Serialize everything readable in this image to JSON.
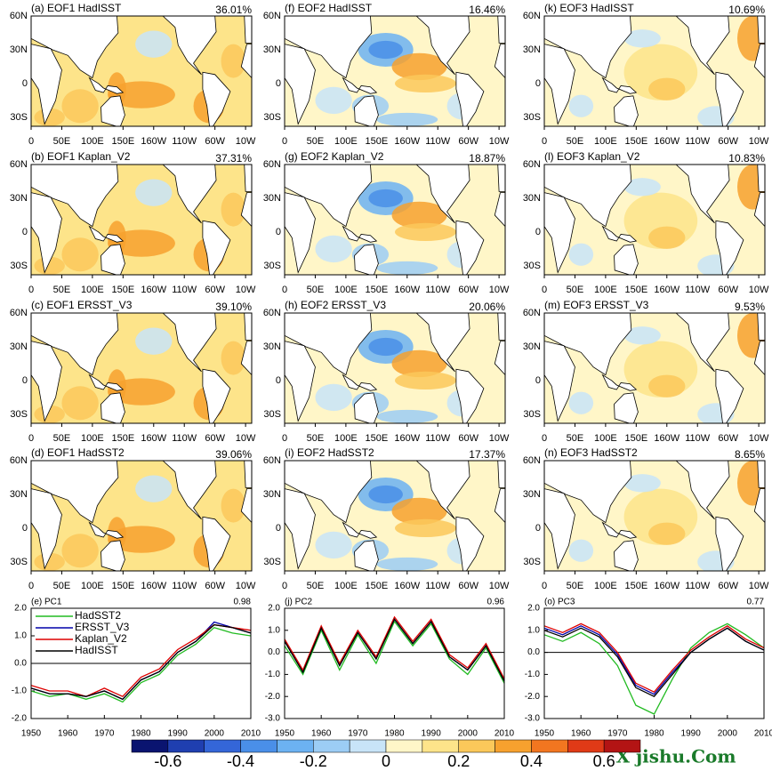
{
  "maps": [
    {
      "title": "(a) EOF1 HadISST",
      "percent": "36.01%"
    },
    {
      "title": "(b) EOF1 Kaplan_V2",
      "percent": "37.31%"
    },
    {
      "title": "(c) EOF1 ERSST_V3",
      "percent": "39.10%"
    },
    {
      "title": "(d) EOF1 HadSST2",
      "percent": "39.06%"
    },
    {
      "title": "(f) EOF2 HadISST",
      "percent": "16.46%"
    },
    {
      "title": "(g) EOF2 Kaplan_V2",
      "percent": "18.87%"
    },
    {
      "title": "(h) EOF2 ERSST_V3",
      "percent": "20.06%"
    },
    {
      "title": "(i) EOF2 HadSST2",
      "percent": "17.37%"
    },
    {
      "title": "(k) EOF3 HadISST",
      "percent": "10.69%"
    },
    {
      "title": "(l) EOF3 Kaplan_V2",
      "percent": "10.83%"
    },
    {
      "title": "(m) EOF3 ERSST_V3",
      "percent": "9.53%"
    },
    {
      "title": "(n) EOF3 HadSST2",
      "percent": "8.65%"
    }
  ],
  "map_xticks": [
    "0",
    "50E",
    "100E",
    "150E",
    "160W",
    "110W",
    "60W",
    "10W"
  ],
  "map_yticks": [
    "60N",
    "30N",
    "0",
    "30S"
  ],
  "chart_data": [
    {
      "type": "line",
      "title": "(e) PC1",
      "correlation": "0.98",
      "legend": "upper left",
      "x": [
        1950,
        1955,
        1960,
        1965,
        1970,
        1975,
        1980,
        1985,
        1990,
        1995,
        2000,
        2005,
        2010
      ],
      "xlim": [
        1950,
        2010
      ],
      "xticks": [
        1950,
        1960,
        1970,
        1980,
        1990,
        2000,
        2010
      ],
      "ylim": [
        -2,
        2
      ],
      "yticks": [
        {
          "value": 2,
          "label": "2.0"
        },
        {
          "value": 1,
          "label": "1.0"
        },
        {
          "value": 0,
          "label": "0.0"
        },
        {
          "value": -1,
          "label": "-1.0"
        },
        {
          "value": -2,
          "label": "-2.0"
        }
      ],
      "series": [
        {
          "name": "HadSST2",
          "color": "#22bb22",
          "values": [
            -1.0,
            -1.2,
            -1.1,
            -1.3,
            -1.1,
            -1.4,
            -0.7,
            -0.4,
            0.3,
            0.7,
            1.3,
            1.1,
            1.0
          ]
        },
        {
          "name": "ERSST_V3",
          "color": "#0000aa",
          "values": [
            -0.9,
            -1.1,
            -1.1,
            -1.2,
            -1.0,
            -1.3,
            -0.6,
            -0.3,
            0.4,
            0.8,
            1.5,
            1.3,
            1.1
          ]
        },
        {
          "name": "Kaplan_V2",
          "color": "#dd0000",
          "values": [
            -0.8,
            -1.0,
            -1.0,
            -1.2,
            -0.9,
            -1.2,
            -0.5,
            -0.2,
            0.5,
            0.9,
            1.4,
            1.3,
            1.2
          ]
        },
        {
          "name": "HadISST",
          "color": "#000000",
          "values": [
            -0.9,
            -1.1,
            -1.1,
            -1.2,
            -1.0,
            -1.3,
            -0.6,
            -0.3,
            0.4,
            0.8,
            1.4,
            1.3,
            1.1
          ]
        }
      ]
    },
    {
      "type": "line",
      "title": "(j) PC2",
      "correlation": "0.96",
      "x": [
        1950,
        1955,
        1960,
        1965,
        1970,
        1975,
        1980,
        1985,
        1990,
        1995,
        2000,
        2005,
        2010
      ],
      "xlim": [
        1950,
        2010
      ],
      "xticks": [
        1950,
        1960,
        1970,
        1980,
        1990,
        2000,
        2010
      ],
      "ylim": [
        -3,
        2
      ],
      "yticks": [
        {
          "value": 2,
          "label": "2.0"
        },
        {
          "value": 1,
          "label": "1.0"
        },
        {
          "value": 0,
          "label": "0.0"
        },
        {
          "value": -1,
          "label": "-1.0"
        },
        {
          "value": -2,
          "label": "-2.0"
        },
        {
          "value": -3,
          "label": "-3.0"
        }
      ],
      "series": [
        {
          "color": "#22bb22",
          "values": [
            0.3,
            -1.0,
            1.0,
            -0.8,
            0.8,
            -0.5,
            1.4,
            0.3,
            1.3,
            -0.3,
            -1.0,
            0.2,
            -1.4
          ]
        },
        {
          "color": "#0000aa",
          "values": [
            0.5,
            -0.9,
            1.1,
            -0.6,
            0.9,
            -0.3,
            1.5,
            0.4,
            1.4,
            -0.2,
            -0.8,
            0.3,
            -1.3
          ]
        },
        {
          "color": "#dd0000",
          "values": [
            0.6,
            -0.8,
            1.2,
            -0.5,
            1.0,
            -0.2,
            1.6,
            0.5,
            1.5,
            -0.1,
            -0.7,
            0.4,
            -1.2
          ]
        },
        {
          "color": "#000000",
          "values": [
            0.5,
            -0.9,
            1.1,
            -0.6,
            0.9,
            -0.3,
            1.5,
            0.4,
            1.4,
            -0.2,
            -0.8,
            0.3,
            -1.3
          ]
        }
      ]
    },
    {
      "type": "line",
      "title": "(o) PC3",
      "correlation": "0.77",
      "x": [
        1950,
        1955,
        1960,
        1965,
        1970,
        1975,
        1980,
        1985,
        1990,
        1995,
        2000,
        2005,
        2010
      ],
      "xlim": [
        1950,
        2010
      ],
      "xticks": [
        1950,
        1960,
        1970,
        1980,
        1990,
        2000,
        2010
      ],
      "ylim": [
        -3,
        2
      ],
      "yticks": [
        {
          "value": 2,
          "label": "2.0"
        },
        {
          "value": 1,
          "label": "1.0"
        },
        {
          "value": 0,
          "label": "0.0"
        },
        {
          "value": -1,
          "label": "-1.0"
        },
        {
          "value": -2,
          "label": "-2.0"
        },
        {
          "value": -3,
          "label": "-3.0"
        }
      ],
      "series": [
        {
          "color": "#22bb22",
          "values": [
            0.8,
            0.5,
            0.9,
            0.4,
            -0.6,
            -2.4,
            -2.8,
            -1.2,
            0.2,
            0.9,
            1.3,
            0.8,
            0.2
          ]
        },
        {
          "color": "#0000aa",
          "values": [
            1.1,
            0.8,
            1.2,
            0.8,
            -0.1,
            -1.5,
            -1.9,
            -0.9,
            0.0,
            0.6,
            1.1,
            0.5,
            0.1
          ]
        },
        {
          "color": "#dd0000",
          "values": [
            1.2,
            0.9,
            1.3,
            0.9,
            0.0,
            -1.4,
            -1.8,
            -0.8,
            0.1,
            0.7,
            1.2,
            0.6,
            0.2
          ]
        },
        {
          "color": "#000000",
          "values": [
            1.0,
            0.7,
            1.1,
            0.7,
            -0.2,
            -1.6,
            -2.0,
            -1.0,
            0.0,
            0.6,
            1.1,
            0.5,
            0.1
          ]
        }
      ]
    }
  ],
  "colorbar": {
    "clim": [
      -0.7,
      0.7
    ],
    "ticks": [
      -0.6,
      -0.4,
      -0.2,
      0,
      0.2,
      0.4,
      0.6
    ],
    "colors": [
      "#0a1470",
      "#1f3fb0",
      "#3466d8",
      "#4a8fe8",
      "#6cb2f2",
      "#9ccdf5",
      "#c8e4f8",
      "#fff6c8",
      "#fde48a",
      "#fbc85a",
      "#f7a12e",
      "#f27620",
      "#e03a17",
      "#b31414"
    ]
  },
  "watermark": "X jishu.Com"
}
